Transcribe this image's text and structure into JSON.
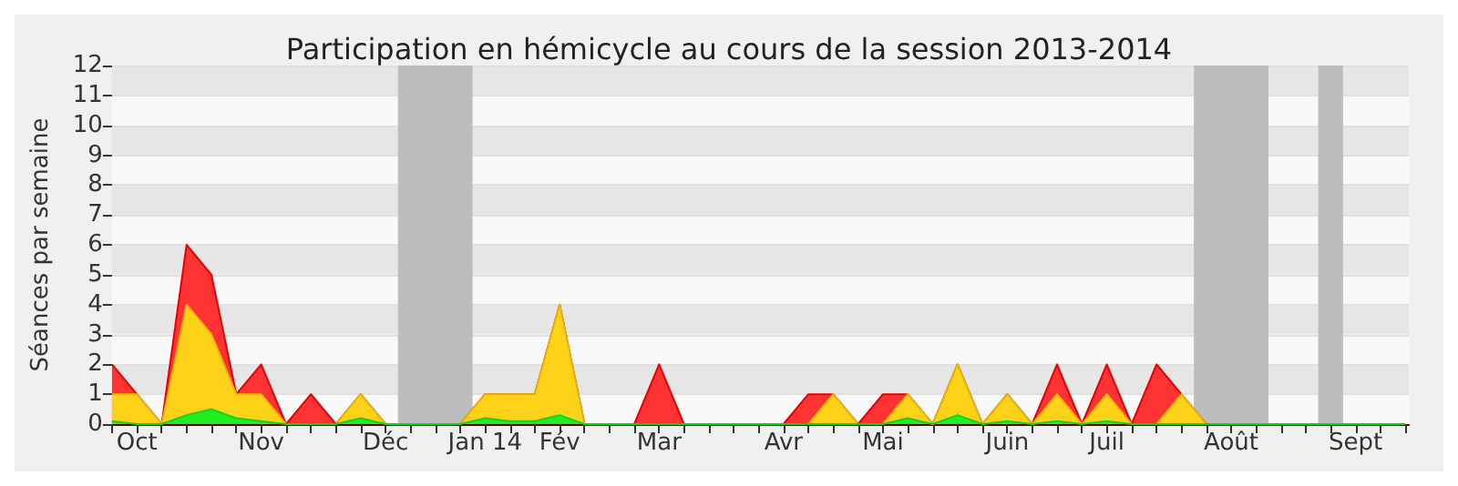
{
  "chart_data": {
    "type": "area",
    "title": "Participation en hémicycle au cours de la session 2013-2014",
    "ylabel": "Séances par semaine",
    "stacked": true,
    "grid": "y",
    "marker": "none",
    "x": [
      "2013-09-30",
      "2013-10-07",
      "2013-10-14",
      "2013-10-21",
      "2013-10-28",
      "2013-11-04",
      "2013-11-11",
      "2013-11-18",
      "2013-11-25",
      "2013-12-02",
      "2013-12-09",
      "2013-12-16",
      "2013-12-23",
      "2013-12-30",
      "2014-01-06",
      "2014-01-13",
      "2014-01-20",
      "2014-01-27",
      "2014-02-03",
      "2014-02-10",
      "2014-02-17",
      "2014-02-24",
      "2014-03-03",
      "2014-03-10",
      "2014-03-17",
      "2014-03-24",
      "2014-03-31",
      "2014-04-07",
      "2014-04-14",
      "2014-04-21",
      "2014-04-28",
      "2014-05-05",
      "2014-05-12",
      "2014-05-19",
      "2014-05-26",
      "2014-06-02",
      "2014-06-09",
      "2014-06-16",
      "2014-06-23",
      "2014-06-30",
      "2014-07-07",
      "2014-07-14",
      "2014-07-21",
      "2014-07-28",
      "2014-08-04",
      "2014-08-11",
      "2014-08-18",
      "2014-08-25",
      "2014-09-01",
      "2014-09-08",
      "2014-09-15",
      "2014-09-22",
      "2014-09-29"
    ],
    "xlim": [
      "2013-09-30",
      "2014-09-30"
    ],
    "xticks": [
      {
        "value": "2013-09-30",
        "label": null
      },
      {
        "value": "2013-10-07",
        "label": "Oct"
      },
      {
        "value": "2013-10-14",
        "label": null
      },
      {
        "value": "2013-10-21",
        "label": null
      },
      {
        "value": "2013-10-28",
        "label": null
      },
      {
        "value": "2013-11-04",
        "label": null
      },
      {
        "value": "2013-11-11",
        "label": "Nov"
      },
      {
        "value": "2013-11-18",
        "label": null
      },
      {
        "value": "2013-11-25",
        "label": null
      },
      {
        "value": "2013-12-02",
        "label": null
      },
      {
        "value": "2013-12-09",
        "label": null
      },
      {
        "value": "2013-12-16",
        "label": "Déc"
      },
      {
        "value": "2013-12-23",
        "label": null
      },
      {
        "value": "2013-12-30",
        "label": null
      },
      {
        "value": "2014-01-06",
        "label": null
      },
      {
        "value": "2014-01-13",
        "label": "Jan 14"
      },
      {
        "value": "2014-01-20",
        "label": null
      },
      {
        "value": "2014-01-27",
        "label": null
      },
      {
        "value": "2014-02-03",
        "label": "Fév"
      },
      {
        "value": "2014-02-10",
        "label": null
      },
      {
        "value": "2014-02-17",
        "label": null
      },
      {
        "value": "2014-02-24",
        "label": null
      },
      {
        "value": "2014-03-03",
        "label": "Mar"
      },
      {
        "value": "2014-03-10",
        "label": null
      },
      {
        "value": "2014-03-17",
        "label": null
      },
      {
        "value": "2014-03-24",
        "label": null
      },
      {
        "value": "2014-03-31",
        "label": null
      },
      {
        "value": "2014-04-07",
        "label": "Avr"
      },
      {
        "value": "2014-04-14",
        "label": null
      },
      {
        "value": "2014-04-21",
        "label": null
      },
      {
        "value": "2014-04-28",
        "label": null
      },
      {
        "value": "2014-05-05",
        "label": "Mai"
      },
      {
        "value": "2014-05-12",
        "label": null
      },
      {
        "value": "2014-05-19",
        "label": null
      },
      {
        "value": "2014-05-26",
        "label": null
      },
      {
        "value": "2014-06-02",
        "label": null
      },
      {
        "value": "2014-06-09",
        "label": "Juin"
      },
      {
        "value": "2014-06-16",
        "label": null
      },
      {
        "value": "2014-06-23",
        "label": null
      },
      {
        "value": "2014-06-30",
        "label": null
      },
      {
        "value": "2014-07-07",
        "label": "Juil"
      },
      {
        "value": "2014-07-14",
        "label": null
      },
      {
        "value": "2014-07-21",
        "label": null
      },
      {
        "value": "2014-07-28",
        "label": null
      },
      {
        "value": "2014-08-04",
        "label": null
      },
      {
        "value": "2014-08-11",
        "label": "Août"
      },
      {
        "value": "2014-08-18",
        "label": null
      },
      {
        "value": "2014-08-25",
        "label": null
      },
      {
        "value": "2014-09-01",
        "label": null
      },
      {
        "value": "2014-09-08",
        "label": null
      },
      {
        "value": "2014-09-15",
        "label": "Sept"
      },
      {
        "value": "2014-09-22",
        "label": null
      },
      {
        "value": "2014-09-29",
        "label": null
      }
    ],
    "ylim": [
      0,
      12
    ],
    "yticks": [
      0,
      1,
      2,
      3,
      4,
      5,
      6,
      7,
      8,
      9,
      10,
      11,
      12
    ],
    "series": [
      {
        "color": "#22ee22",
        "values": [
          0.1,
          0,
          0,
          0.3,
          0.5,
          0.2,
          0.1,
          0,
          0,
          0,
          0.2,
          0,
          0,
          0,
          0,
          0.2,
          0.1,
          0.1,
          0.3,
          0,
          0,
          0,
          0,
          0,
          0,
          0,
          0,
          0,
          0,
          0,
          0,
          0,
          0.2,
          0,
          0.3,
          0,
          0.1,
          0,
          0.1,
          0,
          0.1,
          0,
          0,
          0,
          0,
          0,
          0,
          0,
          0,
          0,
          0,
          0,
          0
        ]
      },
      {
        "color": "#ffd21a",
        "values": [
          0.9,
          1,
          0,
          3.7,
          2.5,
          0.8,
          0.9,
          0,
          0,
          0,
          0.8,
          0,
          0,
          0,
          0,
          0.8,
          0.9,
          0.9,
          3.7,
          0,
          0,
          0,
          0,
          0,
          0,
          0,
          0,
          0,
          0,
          1,
          0,
          0,
          0.8,
          0,
          1.7,
          0,
          0.9,
          0,
          0.9,
          0,
          0.9,
          0,
          0,
          1,
          0,
          0,
          0,
          0,
          0,
          0,
          0,
          0,
          0
        ]
      },
      {
        "color": "#ff3333",
        "values": [
          1,
          0,
          0,
          2,
          2,
          0,
          1,
          0,
          1,
          0,
          0,
          0,
          0,
          0,
          0,
          0,
          0,
          0,
          0,
          0,
          0,
          0,
          2,
          0,
          0,
          0,
          0,
          0,
          1,
          0,
          0,
          1,
          0,
          0,
          0,
          0,
          0,
          0,
          1,
          0,
          1,
          0,
          2,
          0,
          0,
          0,
          0,
          0,
          0,
          0,
          0,
          0,
          0
        ]
      }
    ],
    "bands": [
      {
        "axis": "x",
        "from": "2013-12-19T12:00",
        "to": "2014-01-09T12:00",
        "color": "#bdbdbd"
      },
      {
        "axis": "x",
        "from": "2014-07-31T12:00",
        "to": "2014-08-21T12:00",
        "color": "#bdbdbd"
      },
      {
        "axis": "x",
        "from": "2014-09-04T12:00",
        "to": "2014-09-11T12:00",
        "color": "#bdbdbd"
      }
    ]
  }
}
